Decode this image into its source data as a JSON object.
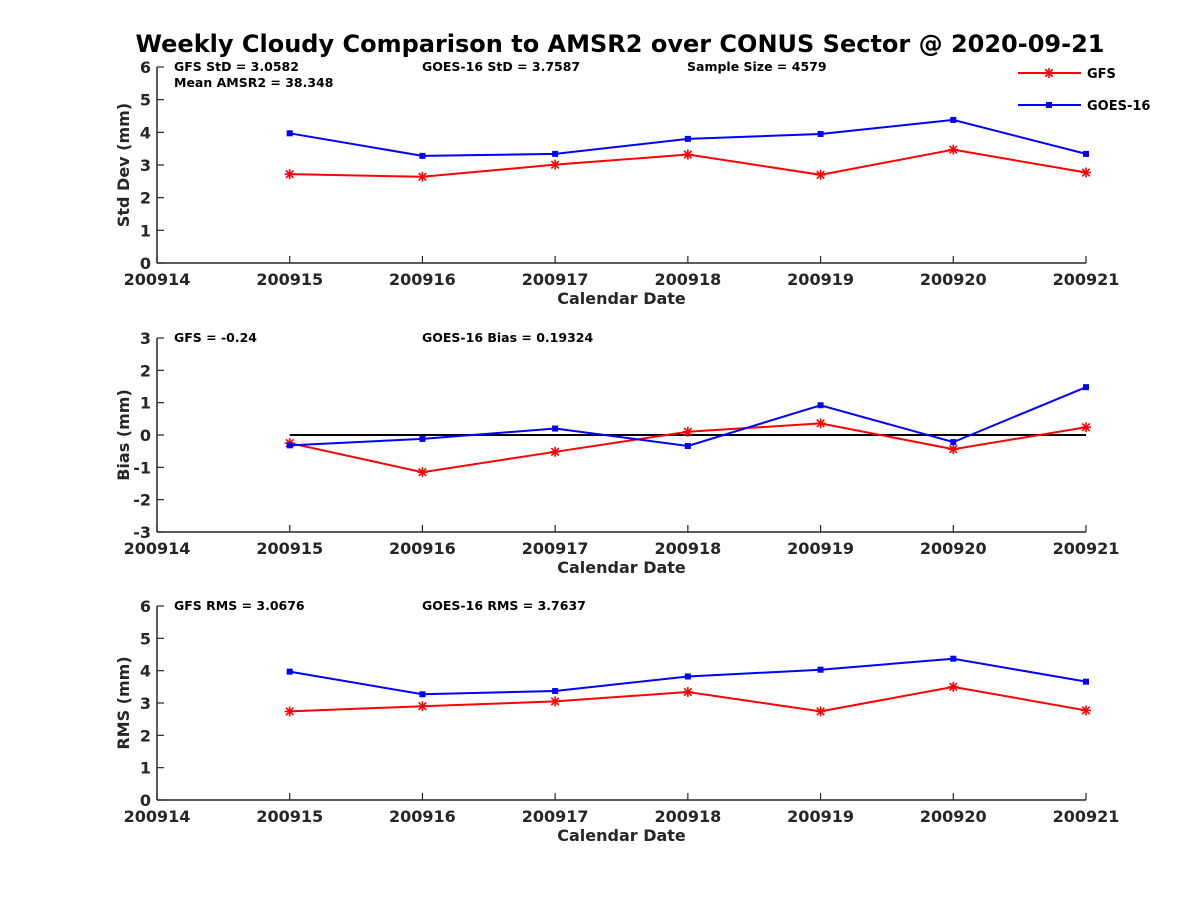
{
  "title": "Weekly Cloudy Comparison to AMSR2 over CONUS Sector @ 2020-09-21",
  "legend": {
    "placement": "top-right",
    "items": [
      {
        "label": "GFS",
        "color": "#ff0000",
        "marker": "asterisk"
      },
      {
        "label": "GOES-16",
        "color": "#0000ff",
        "marker": "square"
      }
    ]
  },
  "chart_data": [
    {
      "type": "line",
      "xlabel": "Calendar Date",
      "ylabel": "Std Dev (mm)",
      "x_ticks": [
        "200914",
        "200915",
        "200916",
        "200917",
        "200918",
        "200919",
        "200920",
        "200921"
      ],
      "ylim": [
        0,
        6
      ],
      "y_ticks": [
        "0",
        "1",
        "2",
        "3",
        "4",
        "5",
        "6"
      ],
      "grid": false,
      "series": [
        {
          "name": "GFS",
          "color": "#ff0000",
          "marker": "asterisk",
          "x": [
            "200915",
            "200916",
            "200917",
            "200918",
            "200919",
            "200920",
            "200921"
          ],
          "values": [
            2.72,
            2.64,
            3.01,
            3.32,
            2.7,
            3.47,
            2.77
          ]
        },
        {
          "name": "GOES-16",
          "color": "#0000ff",
          "marker": "square",
          "x": [
            "200915",
            "200916",
            "200917",
            "200918",
            "200919",
            "200920",
            "200921"
          ],
          "values": [
            3.97,
            3.28,
            3.34,
            3.8,
            3.95,
            4.38,
            3.34
          ]
        }
      ],
      "annotations": [
        {
          "text": "GFS StD = 3.0582",
          "slot": "left-line1"
        },
        {
          "text": "GOES-16 StD = 3.7587",
          "slot": "middle-line1"
        },
        {
          "text": "Sample Size = 4579",
          "slot": "right-line1"
        },
        {
          "text": "Mean AMSR2 = 38.348",
          "slot": "left-line2"
        }
      ]
    },
    {
      "type": "line",
      "xlabel": "Calendar Date",
      "ylabel": "Bias (mm)",
      "x_ticks": [
        "200914",
        "200915",
        "200916",
        "200917",
        "200918",
        "200919",
        "200920",
        "200921"
      ],
      "ylim": [
        -3,
        3
      ],
      "y_ticks": [
        "-3",
        "-2",
        "-1",
        "0",
        "1",
        "2",
        "3"
      ],
      "grid": false,
      "reference_line": {
        "y": 0,
        "from": "200915",
        "to": "200921",
        "color": "#000000"
      },
      "series": [
        {
          "name": "GFS",
          "color": "#ff0000",
          "marker": "asterisk",
          "x": [
            "200915",
            "200916",
            "200917",
            "200918",
            "200919",
            "200920",
            "200921"
          ],
          "values": [
            -0.25,
            -1.15,
            -0.52,
            0.1,
            0.36,
            -0.44,
            0.24
          ]
        },
        {
          "name": "GOES-16",
          "color": "#0000ff",
          "marker": "square",
          "x": [
            "200915",
            "200916",
            "200917",
            "200918",
            "200919",
            "200920",
            "200921"
          ],
          "values": [
            -0.32,
            -0.12,
            0.2,
            -0.34,
            0.92,
            -0.22,
            1.48
          ]
        }
      ],
      "annotations": [
        {
          "text": "GFS = -0.24",
          "slot": "left-line1"
        },
        {
          "text": "GOES-16 Bias  = 0.19324",
          "slot": "middle-line1"
        }
      ]
    },
    {
      "type": "line",
      "xlabel": "Calendar Date",
      "ylabel": "RMS (mm)",
      "x_ticks": [
        "200914",
        "200915",
        "200916",
        "200917",
        "200918",
        "200919",
        "200920",
        "200921"
      ],
      "ylim": [
        0,
        6
      ],
      "y_ticks": [
        "0",
        "1",
        "2",
        "3",
        "4",
        "5",
        "6"
      ],
      "grid": false,
      "series": [
        {
          "name": "GFS",
          "color": "#ff0000",
          "marker": "asterisk",
          "x": [
            "200915",
            "200916",
            "200917",
            "200918",
            "200919",
            "200920",
            "200921"
          ],
          "values": [
            2.74,
            2.9,
            3.05,
            3.34,
            2.74,
            3.5,
            2.77
          ]
        },
        {
          "name": "GOES-16",
          "color": "#0000ff",
          "marker": "square",
          "x": [
            "200915",
            "200916",
            "200917",
            "200918",
            "200919",
            "200920",
            "200921"
          ],
          "values": [
            3.97,
            3.27,
            3.37,
            3.82,
            4.03,
            4.37,
            3.66
          ]
        }
      ],
      "annotations": [
        {
          "text": "GFS RMS = 3.0676",
          "slot": "left-line1"
        },
        {
          "text": "GOES-16 RMS = 3.7637",
          "slot": "middle-line1"
        }
      ]
    }
  ]
}
